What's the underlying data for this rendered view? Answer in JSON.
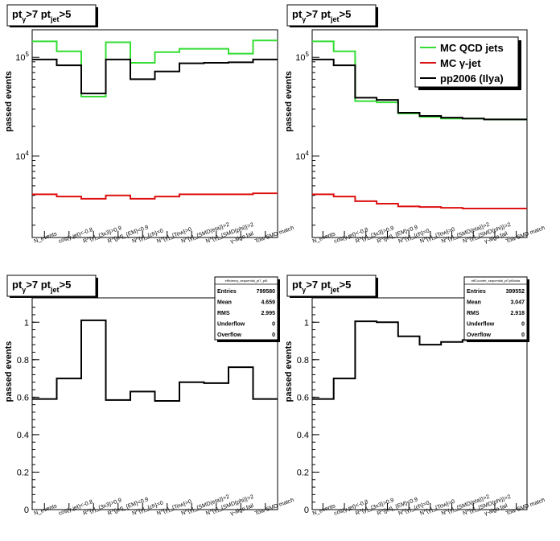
{
  "colors": {
    "qcd": "#33dd33",
    "gammajet": "#dd1111",
    "pp2006": "#000000"
  },
  "x_labels": [
    "N_events",
    "cos(γ,jet)<-0.8",
    "R^{γ}_{3x3}>0.9",
    "R^{jet}_{EM}<0.9",
    "N^{γ}_{ch}=0",
    "N^{γ}_{Tow}>0",
    "N^{γ}_{SMD(eta)}>2",
    "N^{γ}_{SMD(phi)}>2",
    "γ-algo fail",
    "Tow SMD match"
  ],
  "chart_data": [
    {
      "type": "step",
      "title": "pt_γ>7  pt_jet>5",
      "ylabel": "passed events",
      "yscale": "log",
      "ylim": [
        1500,
        190000
      ],
      "yticks": [
        {
          "v": 10000,
          "t": "10^4"
        },
        {
          "v": 100000,
          "t": "10^5"
        }
      ],
      "series": [
        {
          "name": "MC QCD jets",
          "color": "#33dd33",
          "values": [
            145000,
            115000,
            40000,
            142000,
            88000,
            113000,
            122000,
            122000,
            109000,
            148000
          ]
        },
        {
          "name": "MC γ-jet",
          "color": "#dd1111",
          "values": [
            4100,
            3900,
            3700,
            4000,
            3700,
            3900,
            4100,
            4100,
            4100,
            4200
          ]
        },
        {
          "name": "pp2006 (Ilya)",
          "color": "#000000",
          "values": [
            95000,
            83000,
            43000,
            95000,
            60000,
            72000,
            87000,
            88000,
            89000,
            95000
          ]
        }
      ]
    },
    {
      "type": "step",
      "title": "pt_γ>7  pt_jet>5",
      "ylabel": "passed events",
      "yscale": "log",
      "ylim": [
        1500,
        190000
      ],
      "yticks": [
        {
          "v": 10000,
          "t": "10^4"
        },
        {
          "v": 100000,
          "t": "10^5"
        }
      ],
      "legend_position": "top-right",
      "series": [
        {
          "name": "MC QCD jets",
          "color": "#33dd33",
          "values": [
            145000,
            115000,
            36000,
            35000,
            27000,
            25000,
            24000,
            24000,
            23500,
            23500
          ]
        },
        {
          "name": "MC γ-jet",
          "color": "#dd1111",
          "values": [
            4100,
            3900,
            3500,
            3300,
            3100,
            3050,
            3000,
            2950,
            2950,
            2950
          ]
        },
        {
          "name": "pp2006 (Ilya)",
          "color": "#000000",
          "values": [
            95000,
            83000,
            39000,
            37000,
            27500,
            25500,
            24500,
            24000,
            23500,
            23500
          ]
        }
      ]
    },
    {
      "type": "step",
      "title": "pt_γ>7  pt_jet>5",
      "ylabel": "passed events",
      "yscale": "linear",
      "ylim": [
        0,
        1.13
      ],
      "yticks": [
        {
          "v": 0,
          "t": "0"
        },
        {
          "v": 0.2,
          "t": "0.2"
        },
        {
          "v": 0.4,
          "t": "0.4"
        },
        {
          "v": 0.6,
          "t": "0.6"
        },
        {
          "v": 0.8,
          "t": "0.8"
        },
        {
          "v": 1,
          "t": "1"
        }
      ],
      "series": [
        {
          "name": "",
          "color": "#000000",
          "values": [
            0.59,
            0.7,
            1.01,
            0.585,
            0.63,
            0.58,
            0.68,
            0.675,
            0.76,
            0.59
          ]
        }
      ],
      "stats": {
        "header": "efficiency_sequential_pt7_pt5",
        "entries": "799580",
        "mean": "4.659",
        "rms": "2.995",
        "underflow": "0",
        "overflow": "0"
      }
    },
    {
      "type": "step",
      "title": "pt_γ>7  pt_jet>5",
      "ylabel": "passed events",
      "yscale": "linear",
      "ylim": [
        0,
        1.13
      ],
      "yticks": [
        {
          "v": 0,
          "t": "0"
        },
        {
          "v": 0.2,
          "t": "0.2"
        },
        {
          "v": 0.4,
          "t": "0.4"
        },
        {
          "v": 0.6,
          "t": "0.6"
        },
        {
          "v": 0.8,
          "t": "0.8"
        },
        {
          "v": 1,
          "t": "1"
        }
      ],
      "series": [
        {
          "name": "",
          "color": "#000000",
          "values": [
            0.59,
            0.7,
            1.005,
            1.0,
            0.925,
            0.88,
            0.895,
            0.905,
            0.92,
            0.925
          ]
        }
      ],
      "stats": {
        "header": "effCounter_sequential_pt7pt5data",
        "entries": "399552",
        "mean": "3.047",
        "rms": "2.918",
        "underflow": "0",
        "overflow": "0"
      }
    }
  ],
  "stats_labels": {
    "entries": "Entries",
    "mean": "Mean",
    "rms": "RMS",
    "underflow": "Underflow",
    "overflow": "Overflow"
  }
}
